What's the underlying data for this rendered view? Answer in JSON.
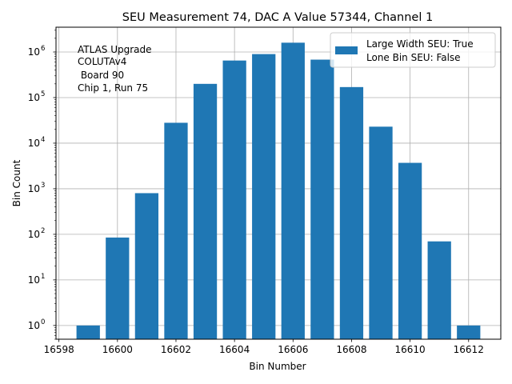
{
  "chart_data": {
    "type": "bar",
    "title": "SEU Measurement 74, DAC A Value 57344, Channel 1",
    "xlabel": "Bin Number",
    "ylabel": "Bin Count",
    "yscale": "log",
    "xlim": [
      16597.9,
      16613.1
    ],
    "ylim": [
      0.5,
      3500000
    ],
    "x": [
      16599,
      16600,
      16601,
      16602,
      16603,
      16604,
      16605,
      16606,
      16607,
      16608,
      16609,
      16610,
      16611,
      16612
    ],
    "values": [
      1,
      85,
      800,
      28000,
      200000,
      650000,
      900000,
      1600000,
      680000,
      170000,
      23000,
      3700,
      70,
      1
    ],
    "bar_width": 0.8,
    "color": "#1f77b4",
    "grid": true,
    "x_ticks": [
      16598,
      16600,
      16602,
      16604,
      16606,
      16608,
      16610,
      16612
    ],
    "y_ticks": [
      {
        "exp": 0,
        "label": "10",
        "sup": "0"
      },
      {
        "exp": 1,
        "label": "10",
        "sup": "1"
      },
      {
        "exp": 2,
        "label": "10",
        "sup": "2"
      },
      {
        "exp": 3,
        "label": "10",
        "sup": "3"
      },
      {
        "exp": 4,
        "label": "10",
        "sup": "4"
      },
      {
        "exp": 5,
        "label": "10",
        "sup": "5"
      },
      {
        "exp": 6,
        "label": "10",
        "sup": "6"
      }
    ],
    "annotation": [
      "ATLAS Upgrade",
      "COLUTAv4",
      " Board 90",
      "Chip 1, Run 75"
    ],
    "legend": {
      "position": "top-right",
      "entries": [
        "Large Width SEU: True",
        "Lone Bin SEU: False"
      ]
    }
  }
}
